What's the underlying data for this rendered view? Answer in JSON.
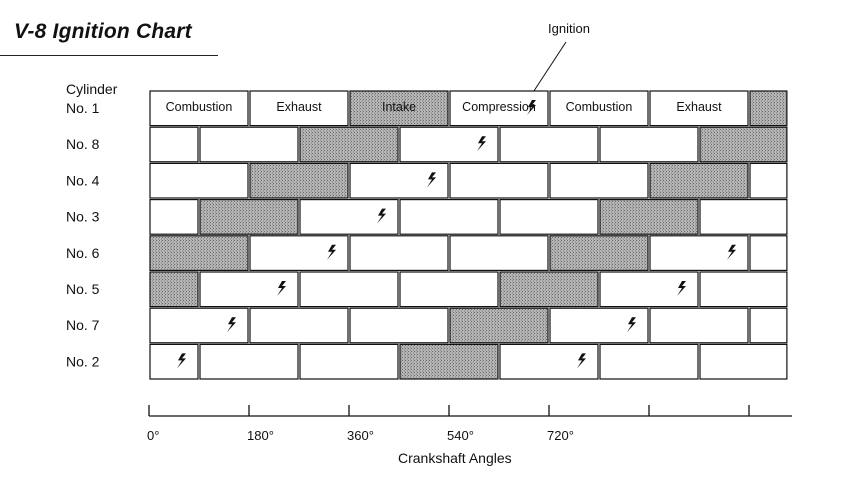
{
  "title": "V-8 Ignition Chart",
  "ignition_callout": "Ignition",
  "cylinder_heading": "Cylinder",
  "phase_labels": [
    "Combustion",
    "Exhaust",
    "Intake",
    "Compression",
    "Combustion",
    "Exhaust"
  ],
  "cylinders": [
    {
      "label": "No. 1",
      "offset": 0
    },
    {
      "label": "No. 8",
      "offset": 90
    },
    {
      "label": "No. 4",
      "offset": 180
    },
    {
      "label": "No. 3",
      "offset": 270
    },
    {
      "label": "No. 6",
      "offset": 360
    },
    {
      "label": "No. 5",
      "offset": 450
    },
    {
      "label": "No. 7",
      "offset": 540
    },
    {
      "label": "No. 2",
      "offset": 630
    }
  ],
  "cycle_phases": [
    "Combustion",
    "Exhaust",
    "Intake",
    "Compression"
  ],
  "axis": {
    "label": "Crankshaft Angles",
    "ticks": [
      0,
      180,
      360,
      540,
      720
    ],
    "tick_labels": [
      "0°",
      "180°",
      "360°",
      "540°",
      "720°"
    ],
    "range": [
      0,
      1150
    ]
  },
  "colors": {
    "intake_fill": "#a8a8a8",
    "line": "#111111"
  }
}
